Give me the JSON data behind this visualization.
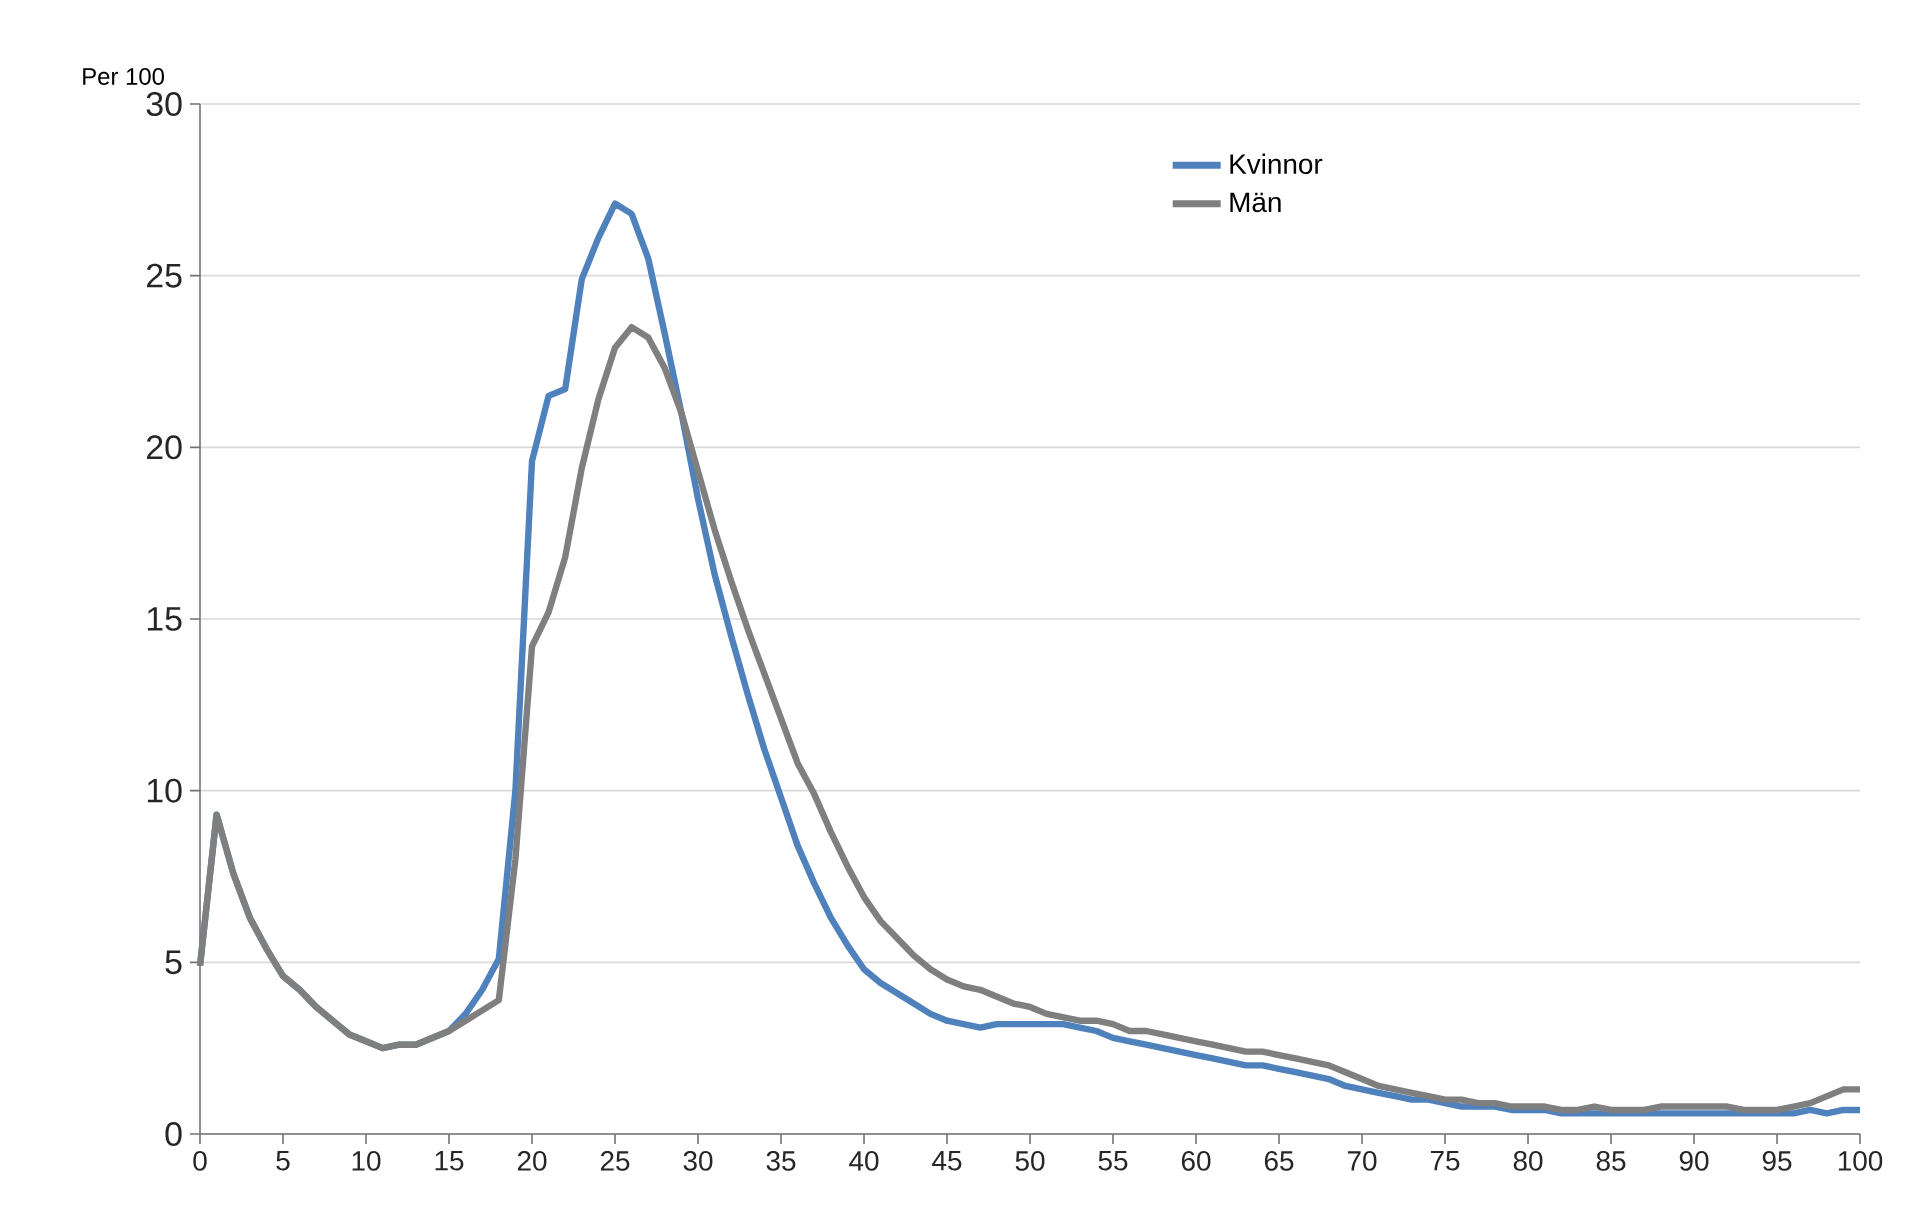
{
  "chart_data": {
    "type": "line",
    "ylabel": "Per 100",
    "x": [
      0,
      1,
      2,
      3,
      4,
      5,
      6,
      7,
      8,
      9,
      10,
      11,
      12,
      13,
      14,
      15,
      16,
      17,
      18,
      19,
      20,
      21,
      22,
      23,
      24,
      25,
      26,
      27,
      28,
      29,
      30,
      31,
      32,
      33,
      34,
      35,
      36,
      37,
      38,
      39,
      40,
      41,
      42,
      43,
      44,
      45,
      46,
      47,
      48,
      49,
      50,
      51,
      52,
      53,
      54,
      55,
      56,
      57,
      58,
      59,
      60,
      61,
      62,
      63,
      64,
      65,
      66,
      67,
      68,
      69,
      70,
      71,
      72,
      73,
      74,
      75,
      76,
      77,
      78,
      79,
      80,
      81,
      82,
      83,
      84,
      85,
      86,
      87,
      88,
      89,
      90,
      91,
      92,
      93,
      94,
      95,
      96,
      97,
      98,
      99,
      100
    ],
    "series": [
      {
        "name": "Kvinnor",
        "color": "#4f81bd",
        "values": [
          4.9,
          9.3,
          7.6,
          6.3,
          5.4,
          4.6,
          4.2,
          3.7,
          3.3,
          2.9,
          2.7,
          2.5,
          2.6,
          2.6,
          2.8,
          3.0,
          3.5,
          4.2,
          5.1,
          10.0,
          19.6,
          21.5,
          21.7,
          24.9,
          26.1,
          27.1,
          26.8,
          25.5,
          23.3,
          21.0,
          18.5,
          16.3,
          14.5,
          12.8,
          11.2,
          9.8,
          8.4,
          7.3,
          6.3,
          5.5,
          4.8,
          4.4,
          4.1,
          3.8,
          3.5,
          3.3,
          3.2,
          3.1,
          3.2,
          3.2,
          3.2,
          3.2,
          3.2,
          3.1,
          3.0,
          2.8,
          2.7,
          2.6,
          2.5,
          2.4,
          2.3,
          2.2,
          2.1,
          2.0,
          2.0,
          1.9,
          1.8,
          1.7,
          1.6,
          1.4,
          1.3,
          1.2,
          1.1,
          1.0,
          1.0,
          0.9,
          0.8,
          0.8,
          0.8,
          0.7,
          0.7,
          0.7,
          0.6,
          0.6,
          0.6,
          0.6,
          0.6,
          0.6,
          0.6,
          0.6,
          0.6,
          0.6,
          0.6,
          0.6,
          0.6,
          0.6,
          0.6,
          0.7,
          0.6,
          0.7,
          0.7
        ]
      },
      {
        "name": "Män",
        "color": "#7f7f7f",
        "values": [
          4.9,
          9.3,
          7.6,
          6.3,
          5.4,
          4.6,
          4.2,
          3.7,
          3.3,
          2.9,
          2.7,
          2.5,
          2.6,
          2.6,
          2.8,
          3.0,
          3.3,
          3.6,
          3.9,
          8.0,
          14.2,
          15.2,
          16.8,
          19.4,
          21.4,
          22.9,
          23.5,
          23.2,
          22.3,
          21.0,
          19.3,
          17.6,
          16.1,
          14.7,
          13.4,
          12.1,
          10.8,
          9.9,
          8.8,
          7.8,
          6.9,
          6.2,
          5.7,
          5.2,
          4.8,
          4.5,
          4.3,
          4.2,
          4.0,
          3.8,
          3.7,
          3.5,
          3.4,
          3.3,
          3.3,
          3.2,
          3.0,
          3.0,
          2.9,
          2.8,
          2.7,
          2.6,
          2.5,
          2.4,
          2.4,
          2.3,
          2.2,
          2.1,
          2.0,
          1.8,
          1.6,
          1.4,
          1.3,
          1.2,
          1.1,
          1.0,
          1.0,
          0.9,
          0.9,
          0.8,
          0.8,
          0.8,
          0.7,
          0.7,
          0.8,
          0.7,
          0.7,
          0.7,
          0.8,
          0.8,
          0.8,
          0.8,
          0.8,
          0.7,
          0.7,
          0.7,
          0.8,
          0.9,
          1.1,
          1.3,
          1.3
        ]
      }
    ],
    "xlim": [
      0,
      100
    ],
    "xticks": [
      0,
      5,
      10,
      15,
      20,
      25,
      30,
      35,
      40,
      45,
      50,
      55,
      60,
      65,
      70,
      75,
      80,
      85,
      90,
      95,
      100
    ],
    "ylim": [
      0,
      30
    ],
    "yticks": [
      0,
      5,
      10,
      15,
      20,
      25,
      30
    ],
    "grid": "y",
    "legend": "top right",
    "marker": "none",
    "line_style": "solid"
  }
}
